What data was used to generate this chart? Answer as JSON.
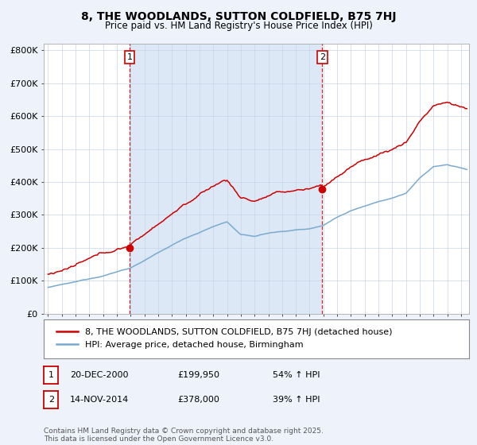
{
  "title": "8, THE WOODLANDS, SUTTON COLDFIELD, B75 7HJ",
  "subtitle": "Price paid vs. HM Land Registry's House Price Index (HPI)",
  "y_ticks": [
    0,
    100000,
    200000,
    300000,
    400000,
    500000,
    600000,
    700000,
    800000
  ],
  "y_tick_labels": [
    "£0",
    "£100K",
    "£200K",
    "£300K",
    "£400K",
    "£500K",
    "£600K",
    "£700K",
    "£800K"
  ],
  "y_max": 820000,
  "house_color": "#cc0000",
  "hpi_color": "#7aaad0",
  "vline_color": "#cc0000",
  "marker1_year_idx": 71,
  "marker1_price": 199950,
  "marker2_year_idx": 239,
  "marker2_price": 378000,
  "legend_house": "8, THE WOODLANDS, SUTTON COLDFIELD, B75 7HJ (detached house)",
  "legend_hpi": "HPI: Average price, detached house, Birmingham",
  "table_row1": [
    "1",
    "20-DEC-2000",
    "£199,950",
    "54% ↑ HPI"
  ],
  "table_row2": [
    "2",
    "14-NOV-2014",
    "£378,000",
    "39% ↑ HPI"
  ],
  "footer": "Contains HM Land Registry data © Crown copyright and database right 2025.\nThis data is licensed under the Open Government Licence v3.0.",
  "background_color": "#eef2fb",
  "plot_bg_color": "#ffffff",
  "shade_color": "#dce8f5"
}
